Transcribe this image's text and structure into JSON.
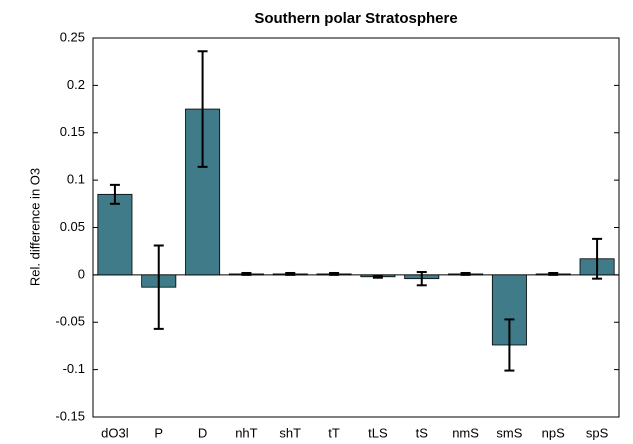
{
  "chart_data": {
    "type": "bar",
    "title": "Southern polar Stratosphere",
    "y_label": "Rel. difference in O3",
    "categories": [
      "dO3l",
      "P",
      "D",
      "nhT",
      "shT",
      "tT",
      "tLS",
      "tS",
      "nmS",
      "smS",
      "npS",
      "spS"
    ],
    "values": [
      0.085,
      -0.013,
      0.175,
      0.001,
      0.001,
      0.001,
      -0.002,
      -0.004,
      0.001,
      -0.074,
      0.001,
      0.017
    ],
    "errors": [
      0.01,
      0.044,
      0.061,
      0.001,
      0.001,
      0.001,
      0.001,
      0.007,
      0.001,
      0.027,
      0.001,
      0.021
    ],
    "color": "#3f7b88",
    "ylim": [
      -0.15,
      0.25
    ],
    "yticks": [
      -0.15,
      -0.1,
      -0.05,
      0,
      0.05,
      0.1,
      0.15,
      0.2,
      0.25
    ],
    "grid": false
  }
}
